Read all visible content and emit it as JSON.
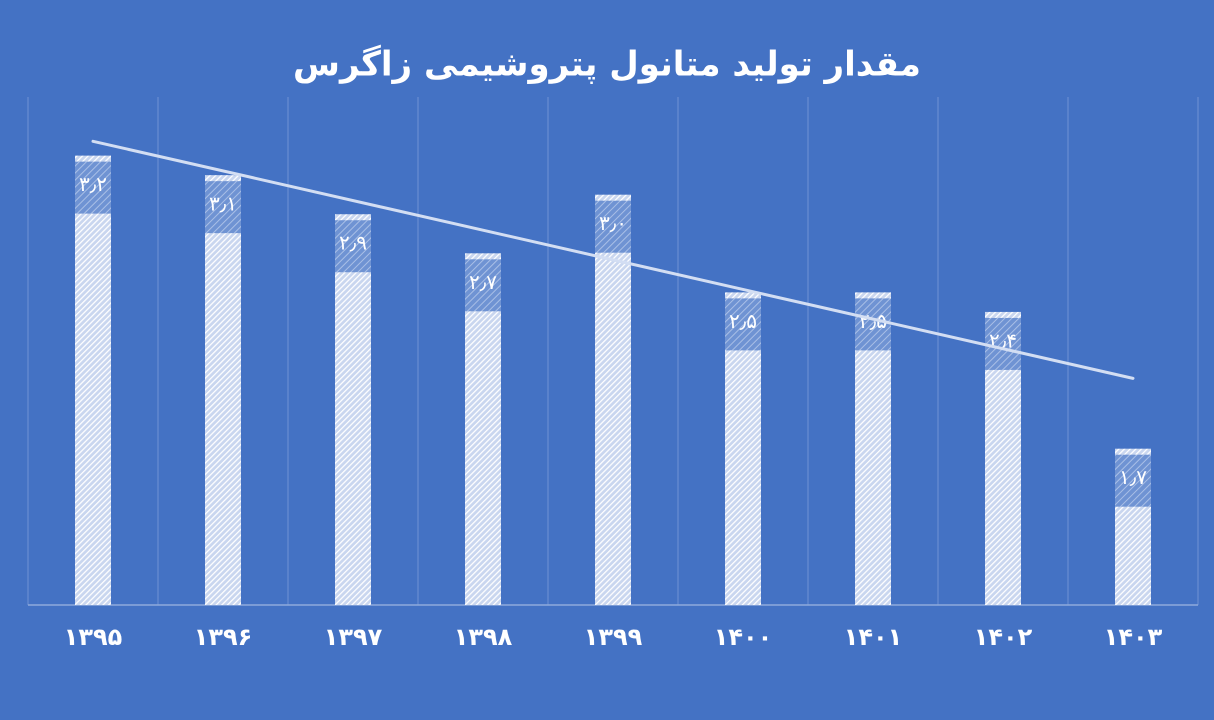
{
  "chart_data": {
    "type": "bar",
    "title": "مقدار تولید متانول پتروشیمی زاگرس",
    "categories": [
      "۱۳۹۵",
      "۱۳۹۶",
      "۱۳۹۷",
      "۱۳۹۸",
      "۱۳۹۹",
      "۱۴۰۰",
      "۱۴۰۱",
      "۱۴۰۲",
      "۱۴۰۳"
    ],
    "values": [
      3.2,
      3.1,
      2.9,
      2.7,
      3.0,
      2.5,
      2.5,
      2.4,
      1.7
    ],
    "value_labels": [
      "۳٫۲",
      "۳٫۱",
      "۲٫۹",
      "۲٫۷",
      "۳٫۰",
      "۲٫۵",
      "۲٫۵",
      "۲٫۴",
      "۱٫۷"
    ],
    "color": "#ffffff",
    "ylim": [
      0.9,
      3.5
    ],
    "trendline": true
  }
}
